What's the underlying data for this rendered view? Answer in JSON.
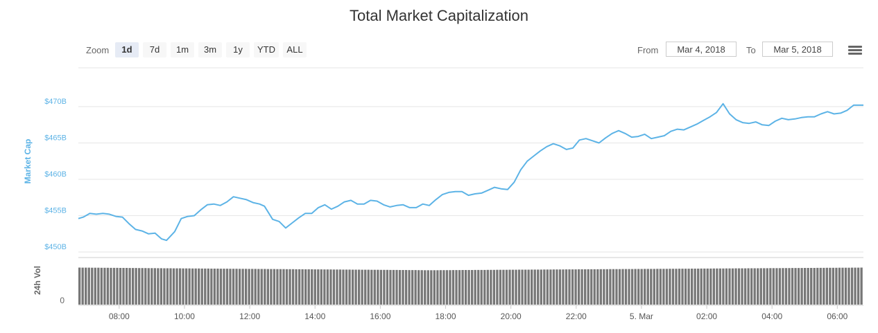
{
  "title": "Total Market Capitalization",
  "zoom": {
    "label": "Zoom",
    "buttons": [
      "1d",
      "7d",
      "1m",
      "3m",
      "1y",
      "YTD",
      "ALL"
    ],
    "active": "1d"
  },
  "range": {
    "from_label": "From",
    "from_value": "Mar 4, 2018",
    "to_label": "To",
    "to_value": "Mar 5, 2018"
  },
  "menu_icon": "hamburger-menu-icon",
  "colors": {
    "line": "#5cb3e6",
    "volume": "#777777",
    "grid": "#e6e6e6",
    "axis_label": "#5cb3e6"
  },
  "chart_data": {
    "type": "line",
    "title": "Total Market Capitalization",
    "ylabel": "Market Cap",
    "y_ticks": [
      "$450B",
      "$455B",
      "$460B",
      "$465B",
      "$470B"
    ],
    "y_tick_values": [
      450,
      455,
      460,
      465,
      470
    ],
    "ylim": [
      450,
      471
    ],
    "x_ticks": [
      "08:00",
      "10:00",
      "12:00",
      "14:00",
      "16:00",
      "18:00",
      "20:00",
      "22:00",
      "5. Mar",
      "02:00",
      "04:00",
      "06:00"
    ],
    "x_tick_hours": [
      8,
      10,
      12,
      14,
      16,
      18,
      20,
      22,
      24,
      26,
      28,
      30
    ],
    "xlim_hours": [
      6.75,
      30.8
    ],
    "grid": true,
    "series": [
      {
        "values": [
          [
            6.75,
            454.6
          ],
          [
            6.9,
            454.8
          ],
          [
            7.1,
            455.3
          ],
          [
            7.3,
            455.2
          ],
          [
            7.5,
            455.3
          ],
          [
            7.7,
            455.2
          ],
          [
            7.9,
            454.9
          ],
          [
            8.1,
            454.8
          ],
          [
            8.3,
            453.9
          ],
          [
            8.5,
            453.1
          ],
          [
            8.7,
            452.9
          ],
          [
            8.9,
            452.5
          ],
          [
            9.1,
            452.6
          ],
          [
            9.3,
            451.8
          ],
          [
            9.45,
            451.6
          ],
          [
            9.7,
            452.8
          ],
          [
            9.9,
            454.6
          ],
          [
            10.1,
            454.9
          ],
          [
            10.3,
            455.0
          ],
          [
            10.5,
            455.8
          ],
          [
            10.7,
            456.5
          ],
          [
            10.9,
            456.6
          ],
          [
            11.1,
            456.4
          ],
          [
            11.3,
            456.9
          ],
          [
            11.5,
            457.6
          ],
          [
            11.7,
            457.4
          ],
          [
            11.9,
            457.2
          ],
          [
            12.1,
            456.8
          ],
          [
            12.3,
            456.6
          ],
          [
            12.45,
            456.3
          ],
          [
            12.7,
            454.5
          ],
          [
            12.9,
            454.2
          ],
          [
            13.1,
            453.3
          ],
          [
            13.3,
            454.0
          ],
          [
            13.5,
            454.7
          ],
          [
            13.7,
            455.3
          ],
          [
            13.9,
            455.3
          ],
          [
            14.1,
            456.1
          ],
          [
            14.3,
            456.5
          ],
          [
            14.5,
            455.9
          ],
          [
            14.7,
            456.3
          ],
          [
            14.9,
            456.9
          ],
          [
            15.1,
            457.1
          ],
          [
            15.3,
            456.6
          ],
          [
            15.5,
            456.6
          ],
          [
            15.7,
            457.1
          ],
          [
            15.9,
            457.0
          ],
          [
            16.1,
            456.5
          ],
          [
            16.3,
            456.2
          ],
          [
            16.5,
            456.4
          ],
          [
            16.7,
            456.5
          ],
          [
            16.9,
            456.1
          ],
          [
            17.1,
            456.1
          ],
          [
            17.3,
            456.6
          ],
          [
            17.5,
            456.4
          ],
          [
            17.7,
            457.2
          ],
          [
            17.9,
            457.9
          ],
          [
            18.1,
            458.2
          ],
          [
            18.3,
            458.3
          ],
          [
            18.5,
            458.3
          ],
          [
            18.7,
            457.8
          ],
          [
            18.9,
            458.0
          ],
          [
            19.1,
            458.1
          ],
          [
            19.3,
            458.5
          ],
          [
            19.5,
            458.9
          ],
          [
            19.7,
            458.7
          ],
          [
            19.9,
            458.6
          ],
          [
            20.1,
            459.6
          ],
          [
            20.3,
            461.3
          ],
          [
            20.5,
            462.5
          ],
          [
            20.7,
            463.2
          ],
          [
            20.9,
            463.9
          ],
          [
            21.1,
            464.5
          ],
          [
            21.3,
            464.9
          ],
          [
            21.5,
            464.6
          ],
          [
            21.7,
            464.1
          ],
          [
            21.9,
            464.3
          ],
          [
            22.1,
            465.4
          ],
          [
            22.3,
            465.6
          ],
          [
            22.5,
            465.3
          ],
          [
            22.7,
            465.0
          ],
          [
            22.9,
            465.7
          ],
          [
            23.1,
            466.3
          ],
          [
            23.3,
            466.7
          ],
          [
            23.5,
            466.3
          ],
          [
            23.7,
            465.8
          ],
          [
            23.9,
            465.9
          ],
          [
            24.1,
            466.2
          ],
          [
            24.3,
            465.6
          ],
          [
            24.5,
            465.8
          ],
          [
            24.7,
            466.0
          ],
          [
            24.9,
            466.6
          ],
          [
            25.1,
            466.9
          ],
          [
            25.3,
            466.8
          ],
          [
            25.5,
            467.2
          ],
          [
            25.7,
            467.6
          ],
          [
            25.9,
            468.1
          ],
          [
            26.1,
            468.6
          ],
          [
            26.3,
            469.2
          ],
          [
            26.5,
            470.4
          ],
          [
            26.7,
            469.0
          ],
          [
            26.9,
            468.2
          ],
          [
            27.1,
            467.8
          ],
          [
            27.3,
            467.7
          ],
          [
            27.5,
            467.9
          ],
          [
            27.7,
            467.5
          ],
          [
            27.9,
            467.4
          ],
          [
            28.1,
            468.0
          ],
          [
            28.3,
            468.4
          ],
          [
            28.5,
            468.2
          ],
          [
            28.7,
            468.3
          ],
          [
            28.9,
            468.5
          ],
          [
            29.1,
            468.6
          ],
          [
            29.3,
            468.6
          ],
          [
            29.5,
            469.0
          ],
          [
            29.7,
            469.3
          ],
          [
            29.9,
            469.0
          ],
          [
            30.1,
            469.1
          ],
          [
            30.3,
            469.5
          ],
          [
            30.5,
            470.2
          ],
          [
            30.8,
            470.2
          ]
        ]
      }
    ],
    "volume_panel": {
      "ylabel": "24h Vol",
      "y_ticks": [
        "0"
      ],
      "level_min": 0.92,
      "level_max": 0.99
    }
  }
}
